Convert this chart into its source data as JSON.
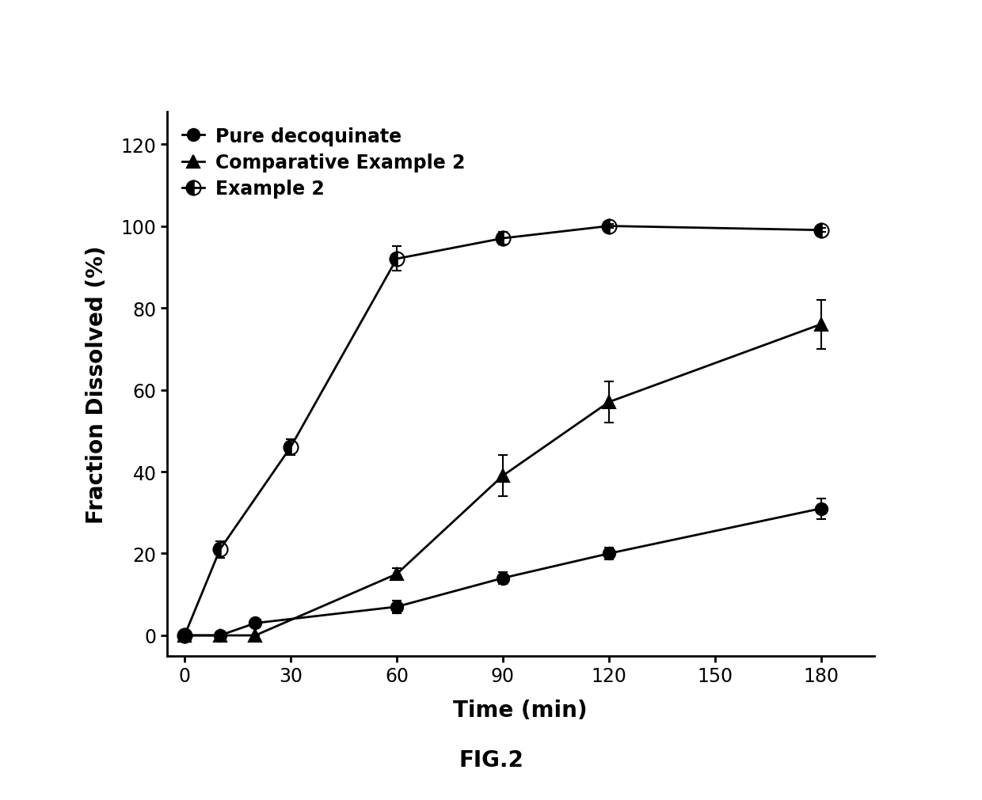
{
  "title": "FIG.2",
  "xlabel": "Time (min)",
  "ylabel": "Fraction Dissolved (%)",
  "xlim": [
    -5,
    195
  ],
  "ylim": [
    -5,
    128
  ],
  "xticks": [
    0,
    30,
    60,
    90,
    120,
    150,
    180
  ],
  "yticks": [
    0,
    20,
    40,
    60,
    80,
    100,
    120
  ],
  "series": [
    {
      "label": "Pure decoquinate",
      "x": [
        0,
        10,
        20,
        60,
        90,
        120,
        180
      ],
      "y": [
        0,
        0,
        3,
        7,
        14,
        20,
        31
      ],
      "yerr": [
        0,
        0,
        0.5,
        1.5,
        1.5,
        1.5,
        2.5
      ],
      "marker": "o",
      "fillstyle": "full",
      "markersize": 11,
      "linewidth": 2.0
    },
    {
      "label": "Comparative Example 2",
      "x": [
        0,
        10,
        20,
        60,
        90,
        120,
        180
      ],
      "y": [
        0,
        0,
        0,
        15,
        39,
        57,
        76
      ],
      "yerr": [
        0,
        0,
        0,
        1.5,
        5,
        5,
        6
      ],
      "marker": "^",
      "fillstyle": "full",
      "markersize": 12,
      "linewidth": 2.0
    },
    {
      "label": "Example 2",
      "x": [
        0,
        10,
        30,
        60,
        90,
        120,
        180
      ],
      "y": [
        0,
        21,
        46,
        92,
        97,
        100,
        99
      ],
      "yerr": [
        0,
        2,
        2,
        3,
        1.5,
        0.5,
        0.5
      ],
      "marker": "o",
      "fillstyle": "left",
      "markersize": 13,
      "linewidth": 2.0
    }
  ],
  "legend_fontsize": 17,
  "axis_label_fontsize": 20,
  "tick_fontsize": 17,
  "title_fontsize": 20,
  "background_color": "#ffffff"
}
